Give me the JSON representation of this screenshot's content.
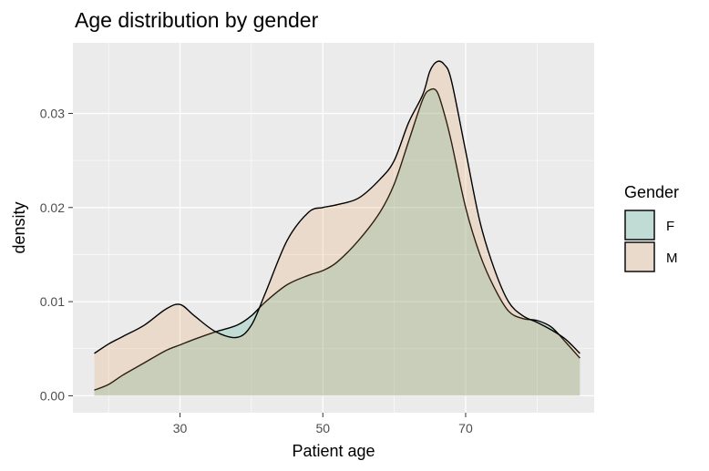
{
  "chart_data": {
    "type": "area",
    "title": "Age distribution by gender",
    "xlabel": "Patient age",
    "ylabel": "density",
    "xlim": [
      15,
      88
    ],
    "ylim": [
      -0.0018,
      0.0375
    ],
    "x_ticks": [
      30,
      50,
      70
    ],
    "x_minor_ticks": [
      20,
      40,
      60,
      80
    ],
    "y_ticks": [
      0.0,
      0.01,
      0.02,
      0.03
    ],
    "y_tick_labels": [
      "0.00",
      "0.01",
      "0.02",
      "0.03"
    ],
    "legend": {
      "title": "Gender",
      "placement": "right"
    },
    "series": [
      {
        "name": "F",
        "color": "#1b9e77",
        "x": [
          18,
          20,
          22,
          25,
          28,
          30,
          32,
          35,
          38,
          40,
          42,
          45,
          48,
          50,
          52,
          55,
          58,
          60,
          62,
          64,
          65,
          66,
          67,
          68,
          70,
          72,
          74,
          76,
          78,
          80,
          82,
          84,
          86
        ],
        "y": [
          0.0006,
          0.0012,
          0.0022,
          0.0035,
          0.0048,
          0.0054,
          0.006,
          0.0068,
          0.0075,
          0.0085,
          0.01,
          0.0118,
          0.0128,
          0.0133,
          0.0142,
          0.0165,
          0.0195,
          0.0225,
          0.027,
          0.0315,
          0.0325,
          0.0323,
          0.03,
          0.027,
          0.02,
          0.015,
          0.0115,
          0.009,
          0.0082,
          0.008,
          0.0073,
          0.0057,
          0.004
        ]
      },
      {
        "name": "M",
        "color": "#e6954e",
        "x": [
          18,
          20,
          22,
          25,
          28,
          30,
          32,
          35,
          38,
          40,
          42,
          45,
          48,
          50,
          52,
          55,
          58,
          60,
          62,
          64,
          65,
          66,
          67,
          68,
          70,
          72,
          74,
          76,
          78,
          80,
          82,
          84,
          86
        ],
        "y": [
          0.0045,
          0.0055,
          0.0063,
          0.0075,
          0.0092,
          0.0097,
          0.0085,
          0.0068,
          0.0062,
          0.0075,
          0.011,
          0.0165,
          0.0195,
          0.02,
          0.0203,
          0.021,
          0.023,
          0.025,
          0.029,
          0.032,
          0.0345,
          0.0355,
          0.0352,
          0.0335,
          0.026,
          0.0185,
          0.0135,
          0.01,
          0.0085,
          0.0078,
          0.007,
          0.006,
          0.0045
        ]
      }
    ]
  }
}
